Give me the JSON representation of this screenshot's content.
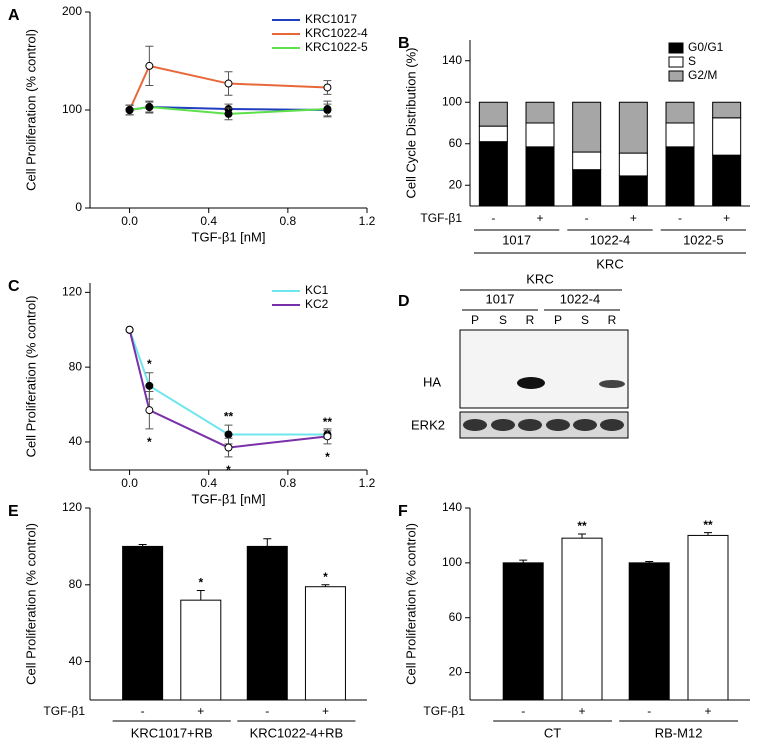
{
  "chart_data": [
    {
      "type": "line",
      "panel": "A",
      "xlabel": "TGF-β1 [nM]",
      "ylabel": "Cell Proliferation (% control)",
      "x": [
        0,
        0.1,
        0.5,
        1
      ],
      "xlim": [
        -0.2,
        1.2
      ],
      "xticks": [
        {
          "value": 0,
          "label": "0.0"
        },
        {
          "value": 0.4,
          "label": "0.4"
        },
        {
          "value": 0.8,
          "label": "0.8"
        },
        {
          "value": 1.2,
          "label": "1.2"
        }
      ],
      "ylim": [
        0,
        200
      ],
      "yticks": [
        0,
        100,
        200
      ],
      "legend": "upper right",
      "series": [
        {
          "name": "KRC1017",
          "color": "#1f3fbf",
          "marker": "filled",
          "values": [
            100,
            103,
            101,
            100
          ],
          "errors": [
            5,
            5,
            5,
            6
          ]
        },
        {
          "name": "KRC1022-4",
          "color": "#e8683a",
          "marker": "open",
          "values": [
            100,
            145,
            127,
            123
          ],
          "errors": [
            5,
            20,
            12,
            7
          ]
        },
        {
          "name": "KRC1022-5",
          "color": "#5de04a",
          "marker": "filled",
          "values": [
            100,
            103,
            96,
            101
          ],
          "errors": [
            5,
            6,
            6,
            8
          ]
        }
      ]
    },
    {
      "type": "stacked_bar",
      "panel": "B",
      "ylabel": "Cell Cycle Distribution (%)",
      "categories": [
        "-",
        "+",
        "-",
        "+",
        "-",
        "+"
      ],
      "groups": [
        "1017",
        "1022-4",
        "1022-5"
      ],
      "group_title": "KRC",
      "row_label": "TGF-β1",
      "ylim": [
        0,
        160
      ],
      "yticks": [
        20,
        60,
        100,
        140
      ],
      "legend": "upper right",
      "series": [
        {
          "name": "G0/G1",
          "color": "#000000",
          "values": [
            62,
            57,
            35,
            29,
            57,
            49
          ]
        },
        {
          "name": "S",
          "color": "#ffffff",
          "values": [
            15,
            23,
            17,
            22,
            23,
            36
          ]
        },
        {
          "name": "G2/M",
          "color": "#a6a6a6",
          "values": [
            23,
            20,
            48,
            49,
            20,
            15
          ]
        }
      ]
    },
    {
      "type": "line",
      "panel": "C",
      "xlabel": "TGF-β1 [nM]",
      "ylabel": "Cell Proliferation (% control)",
      "x": [
        0,
        0.1,
        0.5,
        1
      ],
      "xlim": [
        -0.2,
        1.2
      ],
      "xticks": [
        {
          "value": 0,
          "label": "0.0"
        },
        {
          "value": 0.4,
          "label": "0.4"
        },
        {
          "value": 0.8,
          "label": "0.8"
        },
        {
          "value": 1.2,
          "label": "1.2"
        }
      ],
      "ylim": [
        25,
        125
      ],
      "yticks": [
        40,
        80,
        120
      ],
      "legend": "upper right",
      "series": [
        {
          "name": "KC1",
          "color": "#6ee6ee",
          "marker": "filled",
          "values": [
            100,
            70,
            44,
            44
          ],
          "errors": [
            0,
            7,
            5,
            2
          ]
        },
        {
          "name": "KC2",
          "color": "#7a30a8",
          "marker": "open",
          "values": [
            100,
            57,
            37,
            43
          ],
          "errors": [
            0,
            10,
            5,
            4
          ]
        }
      ],
      "annotations": [
        "*",
        "*",
        "**",
        "*",
        "**",
        "*"
      ]
    },
    {
      "type": "bar",
      "panel": "E",
      "ylabel": "Cell Proliferation (% control)",
      "categories": [
        "-",
        "+",
        "-",
        "+"
      ],
      "groups": [
        "KRC1017+RB",
        "KRC1022-4+RB"
      ],
      "row_label": "TGF-β1",
      "values": [
        100,
        72,
        100,
        79
      ],
      "errors": [
        1,
        5,
        4,
        1
      ],
      "colors": [
        "#000000",
        "#ffffff",
        "#000000",
        "#ffffff"
      ],
      "ylim": [
        20,
        120
      ],
      "yticks": [
        40,
        80,
        120
      ],
      "annotations": [
        "*",
        "*"
      ]
    },
    {
      "type": "bar",
      "panel": "F",
      "ylabel": "Cell Proliferation (% control)",
      "categories": [
        "-",
        "+",
        "-",
        "+"
      ],
      "groups": [
        "CT",
        "RB-M12"
      ],
      "row_label": "TGF-β1",
      "values": [
        100,
        118,
        100,
        120
      ],
      "errors": [
        2,
        3,
        1,
        2
      ],
      "colors": [
        "#000000",
        "#ffffff",
        "#000000",
        "#ffffff"
      ],
      "ylim": [
        0,
        140
      ],
      "yticks": [
        20,
        60,
        100,
        140
      ],
      "annotations": [
        "**",
        "**"
      ]
    }
  ],
  "blot": {
    "panel": "D",
    "title": "KRC",
    "groups": [
      "1017",
      "1022-4"
    ],
    "lanes": [
      "P",
      "S",
      "R",
      "P",
      "S",
      "R"
    ],
    "rows": [
      "HA",
      "ERK2"
    ]
  }
}
